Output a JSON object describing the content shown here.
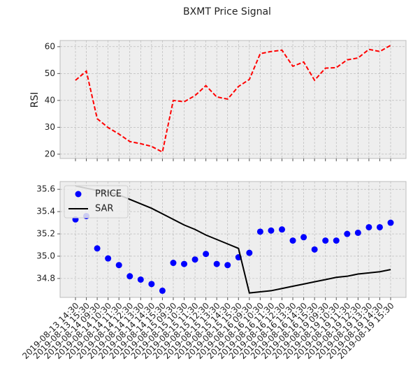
{
  "chart_data": [
    {
      "type": "line",
      "title": "BXMT Price Signal",
      "ylabel": "RSI",
      "series": [
        {
          "color": "#ff0000",
          "linestyle": "dashed",
          "values": [
            47.5,
            50.9,
            33.2,
            29.9,
            27.5,
            24.7,
            23.9,
            22.9,
            20.8,
            40.0,
            39.5,
            41.8,
            45.5,
            41.3,
            40.5,
            45.2,
            47.8,
            57.4,
            58.2,
            58.7,
            52.7,
            54.3,
            47.5,
            52.0,
            52.2,
            55.1,
            55.8,
            59.0,
            58.2,
            60.5
          ]
        }
      ],
      "ylim": [
        18.4,
        62.3
      ],
      "yticks": [
        20,
        30,
        40,
        50,
        60
      ],
      "grid": true
    },
    {
      "type": "line",
      "categories": [
        "2019-08-13 14:30",
        "2019-08-13 15:30",
        "2019-08-14 09:30",
        "2019-08-14 10:30",
        "2019-08-14 11:30",
        "2019-08-14 12:30",
        "2019-08-14 13:30",
        "2019-08-14 14:30",
        "2019-08-14 15:30",
        "2019-08-15 09:30",
        "2019-08-15 10:30",
        "2019-08-15 11:30",
        "2019-08-15 12:30",
        "2019-08-15 13:30",
        "2019-08-15 14:30",
        "2019-08-15 15:30",
        "2019-08-16 09:30",
        "2019-08-16 10:30",
        "2019-08-16 11:30",
        "2019-08-16 12:30",
        "2019-08-16 13:30",
        "2019-08-16 14:30",
        "2019-08-16 15:30",
        "2019-08-19 09:30",
        "2019-08-19 10:30",
        "2019-08-19 11:30",
        "2019-08-19 12:30",
        "2019-08-19 13:30",
        "2019-08-19 14:30",
        "2019-08-19 15:30"
      ],
      "series": [
        {
          "name": "PRICE",
          "color": "#0000ff",
          "mode": "markers",
          "values": [
            35.33,
            35.36,
            35.07,
            34.98,
            34.92,
            34.82,
            34.79,
            34.75,
            34.69,
            34.94,
            34.93,
            34.97,
            35.02,
            34.93,
            34.92,
            34.99,
            35.03,
            35.22,
            35.23,
            35.24,
            35.14,
            35.17,
            35.06,
            35.14,
            35.14,
            35.2,
            35.21,
            35.26,
            35.26,
            35.3
          ]
        },
        {
          "name": "SAR",
          "color": "#000000",
          "mode": "line",
          "values": [
            35.63,
            35.61,
            35.59,
            35.575,
            35.55,
            35.51,
            35.47,
            35.43,
            35.38,
            35.33,
            35.28,
            35.24,
            35.19,
            35.15,
            35.11,
            35.07,
            34.67,
            34.68,
            34.69,
            34.71,
            34.73,
            34.75,
            34.77,
            34.79,
            34.81,
            34.82,
            34.84,
            34.85,
            34.86,
            34.88
          ]
        }
      ],
      "ylim": [
        34.63,
        35.67
      ],
      "yticks": [
        34.8,
        {
          "value": 35.0,
          "label": "35.0"
        },
        35.2,
        35.4,
        35.6
      ],
      "grid": true,
      "legend": "upper left"
    }
  ]
}
